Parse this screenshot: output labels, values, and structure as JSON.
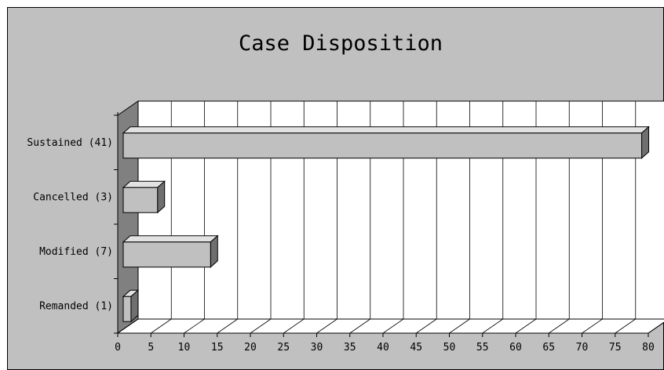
{
  "chart_data": {
    "type": "bar",
    "orientation": "horizontal",
    "style": "3d",
    "title": "Case Disposition",
    "categories": [
      "Sustained (41)",
      "Cancelled (3)",
      "Modified (7)",
      "Remanded (1)"
    ],
    "values": [
      79,
      6,
      14,
      2
    ],
    "xticks": [
      "0",
      "5",
      "10",
      "15",
      "20",
      "25",
      "30",
      "35",
      "40",
      "45",
      "50",
      "55",
      "60",
      "65",
      "70",
      "75",
      "80"
    ],
    "xlim": [
      0,
      80
    ],
    "grid": true,
    "legend": "none"
  },
  "colors": {
    "chart_area": "#c0c0c0",
    "plot_wall": "#ffffff",
    "side_wall": "#808080",
    "bar_front": "#c0c0c0",
    "bar_top": "#e2e2e2",
    "bar_side": "#6f6f6f",
    "grid": "#000000"
  }
}
